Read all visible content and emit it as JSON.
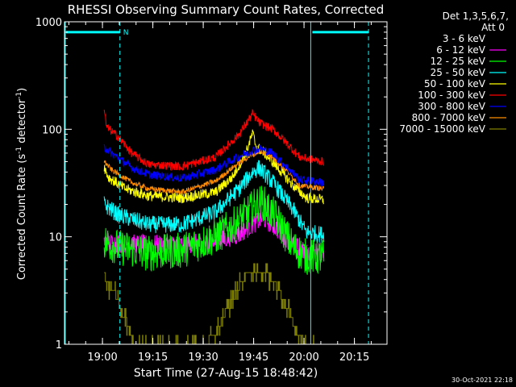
{
  "chart_data": {
    "type": "line",
    "title": "RHESSI Observing Summary Count Rates, Corrected",
    "xlabel": "Start Time (27-Aug-15 18:48:42)",
    "ylabel_main": "Corrected Count Rate (s",
    "ylabel_sup1": "-1",
    "ylabel_mid": " detector",
    "ylabel_sup2": "-1",
    "ylabel_end": ")",
    "yscale": "log",
    "ylim": [
      1,
      1000
    ],
    "xlim_minutes": [
      0,
      96
    ],
    "x_ticks": [
      {
        "minute": 11.3,
        "label": "19:00"
      },
      {
        "minute": 26.3,
        "label": "19:15"
      },
      {
        "minute": 41.3,
        "label": "19:30"
      },
      {
        "minute": 56.3,
        "label": "19:45"
      },
      {
        "minute": 71.3,
        "label": "20:00"
      },
      {
        "minute": 86.3,
        "label": "20:15"
      }
    ],
    "y_ticks": [
      {
        "value": 1,
        "label": "1"
      },
      {
        "value": 10,
        "label": "10"
      },
      {
        "value": 100,
        "label": "100"
      },
      {
        "value": 1000,
        "label": "1000"
      }
    ],
    "grid": false,
    "legend_header": [
      "Det 1,3,5,6,7,",
      "Att 0"
    ],
    "legend_position": "right",
    "flag_label": "N",
    "flags": [
      {
        "type": "night",
        "start_minute": 0,
        "end_minute": 16.5,
        "value": 800
      },
      {
        "type": "night",
        "start_minute": 73.3,
        "end_minute": 90.5,
        "value": 800
      }
    ],
    "vertical_markers": [
      {
        "minute": 0,
        "style": "solid"
      },
      {
        "minute": 16.5,
        "style": "dashed"
      },
      {
        "minute": 73.3,
        "style": "solid"
      },
      {
        "minute": 90.5,
        "style": "dashed"
      }
    ],
    "data_window_minutes": [
      11.8,
      77.2
    ],
    "series": [
      {
        "name": "3 - 6 keV",
        "color": "#000000",
        "noise": 0.05,
        "points": [
          [
            11.8,
            33
          ],
          [
            16,
            33
          ],
          [
            25,
            32
          ],
          [
            35,
            32
          ],
          [
            42,
            32
          ],
          [
            50,
            33
          ],
          [
            56,
            34
          ],
          [
            62,
            32
          ],
          [
            68,
            30
          ],
          [
            77,
            30
          ]
        ]
      },
      {
        "name": "6 - 12 keV",
        "color": "#ff00ff",
        "noise": 0.09,
        "points": [
          [
            11.8,
            9
          ],
          [
            16,
            8.7
          ],
          [
            25,
            8.5
          ],
          [
            35,
            8.5
          ],
          [
            45,
            9
          ],
          [
            52,
            10.5
          ],
          [
            56,
            13
          ],
          [
            59,
            15
          ],
          [
            63,
            12
          ],
          [
            68,
            8.5
          ],
          [
            72,
            7
          ],
          [
            77,
            7.3
          ]
        ]
      },
      {
        "name": "12 - 25 keV",
        "color": "#00ff00",
        "noise": 0.17,
        "points": [
          [
            11.8,
            9
          ],
          [
            16,
            8
          ],
          [
            25,
            7
          ],
          [
            35,
            7.5
          ],
          [
            45,
            10
          ],
          [
            52,
            14
          ],
          [
            57,
            20
          ],
          [
            59,
            21
          ],
          [
            63,
            15
          ],
          [
            68,
            8
          ],
          [
            72,
            6.5
          ],
          [
            77,
            6.5
          ]
        ]
      },
      {
        "name": "25 - 50 keV",
        "color": "#00ffff",
        "noise": 0.08,
        "points": [
          [
            11.8,
            20
          ],
          [
            16,
            16
          ],
          [
            25,
            13
          ],
          [
            35,
            13
          ],
          [
            45,
            17
          ],
          [
            52,
            28
          ],
          [
            56,
            40
          ],
          [
            58,
            44
          ],
          [
            62,
            32
          ],
          [
            68,
            18
          ],
          [
            72,
            11
          ],
          [
            77,
            10.5
          ]
        ]
      },
      {
        "name": "50 - 100 keV",
        "color": "#ffff00",
        "noise": 0.05,
        "points": [
          [
            11.8,
            45
          ],
          [
            13,
            36
          ],
          [
            18,
            28
          ],
          [
            25,
            24
          ],
          [
            35,
            23
          ],
          [
            45,
            26
          ],
          [
            50,
            36
          ],
          [
            54,
            60
          ],
          [
            56,
            92
          ],
          [
            57,
            70
          ],
          [
            60,
            58
          ],
          [
            64,
            42
          ],
          [
            68,
            30
          ],
          [
            72,
            23
          ],
          [
            77,
            22
          ]
        ]
      },
      {
        "name": "100 - 300 keV",
        "color": "#ff0000",
        "noise": 0.04,
        "points": [
          [
            11.8,
            155
          ],
          [
            12.5,
            105
          ],
          [
            16,
            85
          ],
          [
            20,
            60
          ],
          [
            25,
            47
          ],
          [
            35,
            45
          ],
          [
            45,
            55
          ],
          [
            52,
            90
          ],
          [
            56,
            140
          ],
          [
            58,
            115
          ],
          [
            62,
            100
          ],
          [
            66,
            75
          ],
          [
            70,
            55
          ],
          [
            77,
            50
          ]
        ]
      },
      {
        "name": "300 - 800 keV",
        "color": "#0000ff",
        "noise": 0.04,
        "points": [
          [
            11.8,
            68
          ],
          [
            14,
            60
          ],
          [
            20,
            44
          ],
          [
            25,
            38
          ],
          [
            35,
            35
          ],
          [
            45,
            42
          ],
          [
            50,
            52
          ],
          [
            55,
            62
          ],
          [
            58,
            66
          ],
          [
            62,
            60
          ],
          [
            66,
            45
          ],
          [
            70,
            34
          ],
          [
            77,
            32
          ]
        ]
      },
      {
        "name": "800 - 7000 keV",
        "color": "#ff8c00",
        "noise": 0.025,
        "points": [
          [
            11.8,
            50
          ],
          [
            14,
            42
          ],
          [
            20,
            32
          ],
          [
            25,
            28
          ],
          [
            35,
            26
          ],
          [
            45,
            33
          ],
          [
            50,
            44
          ],
          [
            55,
            56
          ],
          [
            58,
            62
          ],
          [
            61,
            58
          ],
          [
            66,
            42
          ],
          [
            70,
            30
          ],
          [
            77,
            28
          ]
        ]
      },
      {
        "name": "7000 - 15000 keV",
        "color": "#808000",
        "noise": 0.0,
        "step": true,
        "points": [
          [
            11.8,
            4.5
          ],
          [
            13,
            3.5
          ],
          [
            15,
            3
          ],
          [
            17,
            2
          ],
          [
            19,
            1.5
          ],
          [
            21,
            1
          ],
          [
            42,
            1
          ],
          [
            45,
            1.3
          ],
          [
            48,
            2
          ],
          [
            51,
            3
          ],
          [
            54,
            4.5
          ],
          [
            57,
            5
          ],
          [
            60,
            4.5
          ],
          [
            63,
            3.5
          ],
          [
            66,
            2.3
          ],
          [
            69,
            1.3
          ],
          [
            72,
            1
          ],
          [
            77,
            1
          ]
        ]
      }
    ]
  },
  "footer": {
    "timestamp": "30-Oct-2021 22:18"
  }
}
